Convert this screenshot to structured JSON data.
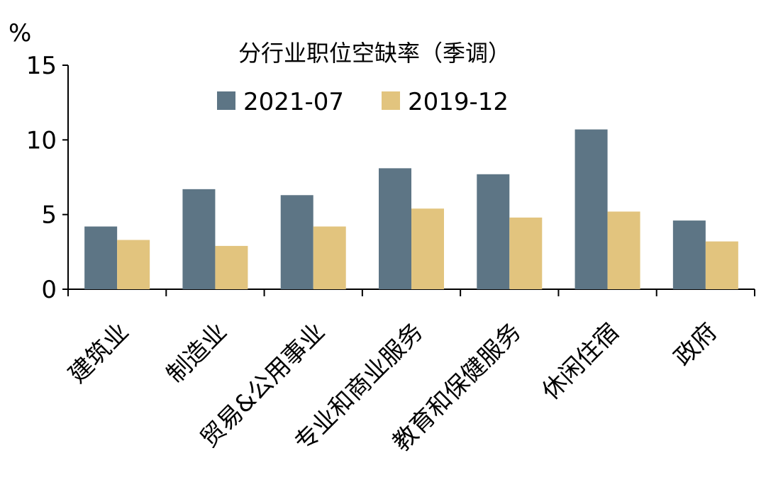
{
  "chart_data": {
    "type": "bar",
    "title": "分行业职位空缺率（季调）",
    "ylabel": "%",
    "xlabel": "",
    "ylim": [
      0,
      15
    ],
    "yticks": [
      0,
      5,
      10,
      15
    ],
    "grid": false,
    "legend_position": "top-center",
    "categories": [
      "建筑业",
      "制造业",
      "贸易&公用事业",
      "专业和商业服务",
      "教育和保健服务",
      "休闲住宿",
      "政府"
    ],
    "series": [
      {
        "name": "2021-07",
        "color": "#5d7585",
        "values": [
          4.2,
          6.7,
          6.3,
          8.1,
          7.7,
          10.7,
          4.6
        ]
      },
      {
        "name": "2019-12",
        "color": "#e2c47e",
        "values": [
          3.3,
          2.9,
          4.2,
          5.4,
          4.8,
          5.2,
          3.2
        ]
      }
    ]
  }
}
